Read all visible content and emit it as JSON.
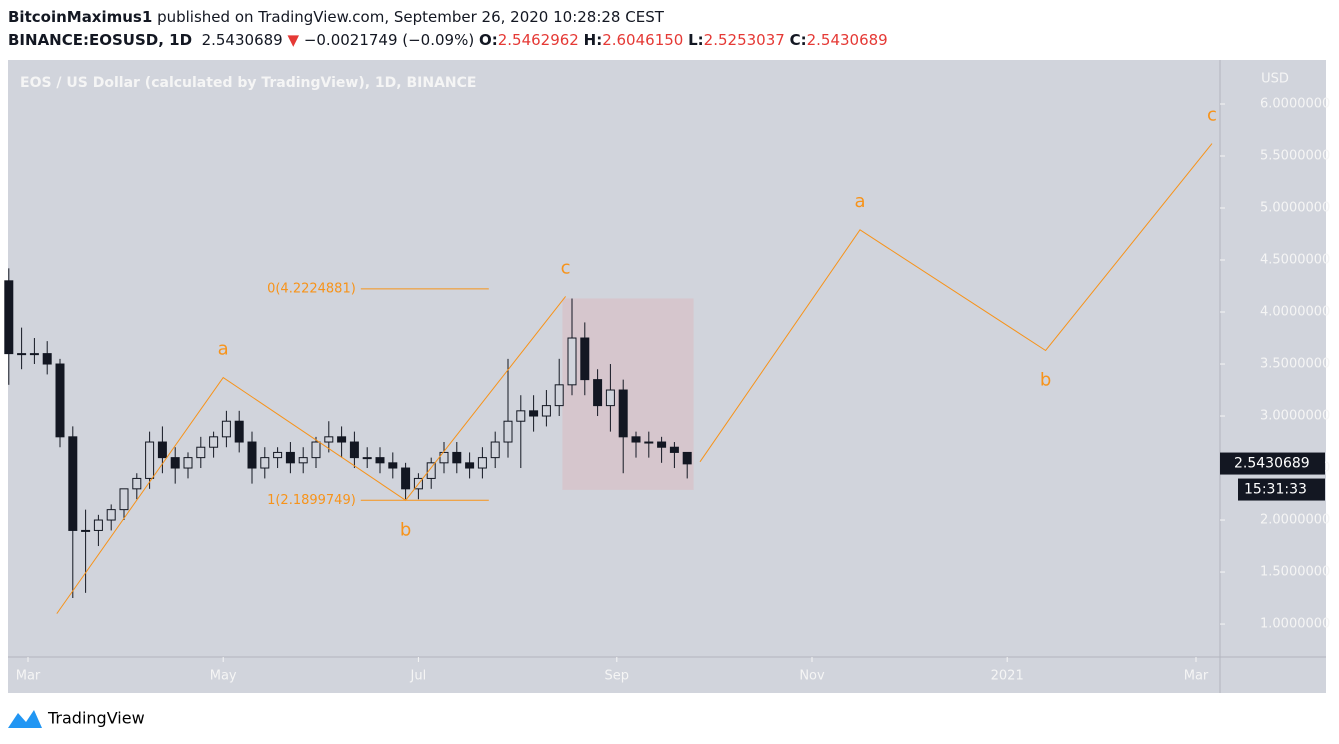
{
  "header": {
    "author": "BitcoinMaximus1",
    "published": "published on TradingView.com, September 26, 2020 10:28:28 CEST",
    "symbol": "BINANCE:EOSUSD, 1D",
    "price": "2.5430689",
    "arrow": "▼",
    "change": "−0.0021749 (−0.09%)",
    "open_label": "O:",
    "open": "2.5462962",
    "high_label": "H:",
    "high": "2.6046150",
    "low_label": "L:",
    "low": "2.5253037",
    "close_label": "C:",
    "close": "2.5430689"
  },
  "footer": {
    "brand": "TradingView"
  },
  "chart_data": {
    "type": "candlestick",
    "title": "EOS / US Dollar (calculated by TradingView), 1D, BINANCE",
    "y_axis_label": "USD",
    "x": [
      -6,
      -2,
      2,
      6,
      10,
      14,
      18,
      22,
      26,
      30,
      34,
      38,
      42,
      46,
      50,
      54,
      58,
      62,
      66,
      70,
      74,
      78,
      82,
      86,
      90,
      94,
      98,
      102,
      106,
      110,
      114,
      118,
      122,
      126,
      130,
      134,
      138,
      142,
      146,
      150,
      154,
      158,
      162,
      166,
      170,
      174,
      178,
      182,
      186,
      190,
      194,
      198,
      202,
      206
    ],
    "open": [
      4.3,
      3.6,
      3.6,
      3.6,
      3.5,
      2.8,
      1.9,
      1.9,
      2.0,
      2.1,
      2.3,
      2.4,
      2.75,
      2.6,
      2.5,
      2.6,
      2.7,
      2.8,
      2.95,
      2.75,
      2.5,
      2.6,
      2.65,
      2.55,
      2.6,
      2.75,
      2.8,
      2.75,
      2.6,
      2.6,
      2.55,
      2.5,
      2.3,
      2.4,
      2.55,
      2.65,
      2.55,
      2.5,
      2.6,
      2.75,
      2.95,
      3.05,
      3.0,
      3.1,
      3.3,
      3.75,
      3.35,
      3.1,
      3.25,
      2.8,
      2.75,
      2.75,
      2.7,
      2.65
    ],
    "high": [
      4.42,
      3.85,
      3.75,
      3.72,
      3.55,
      2.9,
      2.1,
      2.05,
      2.15,
      2.3,
      2.45,
      2.85,
      2.9,
      2.7,
      2.65,
      2.8,
      2.85,
      3.05,
      3.05,
      2.85,
      2.7,
      2.7,
      2.75,
      2.7,
      2.8,
      2.95,
      2.9,
      2.85,
      2.7,
      2.7,
      2.65,
      2.55,
      2.45,
      2.6,
      2.75,
      2.75,
      2.65,
      2.7,
      2.85,
      3.55,
      3.2,
      3.2,
      3.25,
      3.55,
      4.13,
      3.9,
      3.45,
      3.5,
      3.35,
      2.85,
      2.85,
      2.8,
      2.75,
      2.6
    ],
    "low": [
      3.3,
      3.45,
      3.5,
      3.4,
      2.7,
      1.25,
      1.3,
      1.75,
      1.9,
      2.0,
      2.2,
      2.3,
      2.45,
      2.35,
      2.4,
      2.5,
      2.6,
      2.7,
      2.65,
      2.35,
      2.4,
      2.5,
      2.45,
      2.45,
      2.5,
      2.65,
      2.6,
      2.5,
      2.5,
      2.45,
      2.4,
      2.2,
      2.2,
      2.3,
      2.45,
      2.45,
      2.4,
      2.4,
      2.5,
      2.6,
      2.5,
      2.85,
      2.9,
      3.0,
      3.2,
      3.2,
      3.0,
      2.85,
      2.45,
      2.6,
      2.6,
      2.55,
      2.5,
      2.4
    ],
    "close": [
      3.6,
      3.6,
      3.6,
      3.5,
      2.8,
      1.9,
      1.9,
      2.0,
      2.1,
      2.3,
      2.4,
      2.75,
      2.6,
      2.5,
      2.6,
      2.7,
      2.8,
      2.95,
      2.75,
      2.5,
      2.6,
      2.65,
      2.55,
      2.6,
      2.75,
      2.8,
      2.75,
      2.6,
      2.6,
      2.55,
      2.5,
      2.3,
      2.4,
      2.55,
      2.65,
      2.55,
      2.5,
      2.6,
      2.75,
      2.95,
      3.05,
      3.0,
      3.1,
      3.3,
      3.75,
      3.35,
      3.1,
      3.25,
      2.8,
      2.75,
      2.75,
      2.7,
      2.65,
      2.54
    ],
    "color": "#131722",
    "wave_color": "#f7931a",
    "zone_color": "#d6c6cd",
    "xlim": [
      -6.25,
      372.5
    ],
    "ylim": [
      0.337,
      6.423
    ],
    "xticks": [
      {
        "value": 0,
        "label": "Mar"
      },
      {
        "value": 61,
        "label": "May"
      },
      {
        "value": 122,
        "label": "Jul"
      },
      {
        "value": 184,
        "label": "Sep"
      },
      {
        "value": 245,
        "label": "Nov"
      },
      {
        "value": 306,
        "label": "2021"
      },
      {
        "value": 365,
        "label": "Mar"
      }
    ],
    "yticks": [
      {
        "value": 1,
        "label": "1.0000000"
      },
      {
        "value": 1.5,
        "label": "1.5000000"
      },
      {
        "value": 2,
        "label": "2.0000000"
      },
      {
        "value": 2.5,
        "label": "2.5000000"
      },
      {
        "value": 3,
        "label": "3.0000000"
      },
      {
        "value": 3.5,
        "label": "3.5000000"
      },
      {
        "value": 4,
        "label": "4.0000000"
      },
      {
        "value": 4.5,
        "label": "4.5000000"
      },
      {
        "value": 5,
        "label": "5.0000000"
      },
      {
        "value": 5.5,
        "label": "5.5000000"
      },
      {
        "value": 6,
        "label": "6.0000000"
      }
    ],
    "waves": [
      {
        "x": [
          9,
          61,
          118,
          168
        ],
        "y": [
          1.1,
          3.37,
          2.19,
          4.15
        ],
        "labels": [
          "a",
          "b",
          "c"
        ]
      },
      {
        "x": [
          210,
          260,
          318,
          370
        ],
        "y": [
          2.56,
          4.79,
          3.63,
          5.62
        ],
        "labels": [
          "a",
          "b",
          "c"
        ]
      }
    ],
    "fib_levels": [
      {
        "value": 4.2224881,
        "label": "0(4.2224881)"
      },
      {
        "value": 2.1899749,
        "label": "1(2.1899749)"
      }
    ],
    "fib_x": [
      104,
      144
    ],
    "zone": {
      "x": [
        167,
        208
      ],
      "y": [
        2.29,
        4.13
      ]
    },
    "last_price": 2.5430689,
    "countdown": "15:31:33"
  }
}
